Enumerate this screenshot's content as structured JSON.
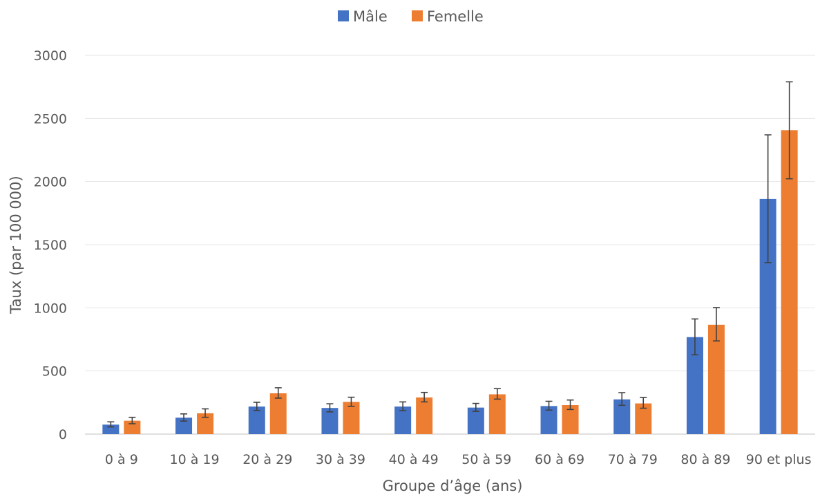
{
  "chart_data": {
    "type": "bar",
    "title": "",
    "xlabel": "Groupe d’âge (ans)",
    "ylabel": "Taux (par 100 000)",
    "ylim": [
      0,
      3000
    ],
    "yticks": [
      "0",
      "500",
      "1000",
      "1500",
      "2000",
      "2500",
      "3000"
    ],
    "ytick_values": [
      0,
      500,
      1000,
      1500,
      2000,
      2500,
      3000
    ],
    "grid": true,
    "legend_position": "top-center",
    "categories": [
      "0 à 9",
      "10 à 19",
      "20 à 29",
      "30 à 39",
      "40 à 49",
      "50 à 59",
      "60 à 69",
      "70 à 79",
      "80 à 89",
      "90 et plus"
    ],
    "series": [
      {
        "name": "Mâle",
        "color": "#4472c4",
        "values": [
          75,
          130,
          218,
          207,
          218,
          210,
          222,
          275,
          768,
          1862
        ],
        "error_low": [
          57,
          103,
          187,
          176,
          185,
          180,
          190,
          228,
          628,
          1358
        ],
        "error_high": [
          97,
          160,
          252,
          240,
          255,
          243,
          260,
          328,
          912,
          2370
        ]
      },
      {
        "name": "Femelle",
        "color": "#ed7d31",
        "values": [
          106,
          165,
          323,
          255,
          290,
          315,
          230,
          243,
          866,
          2407
        ],
        "error_low": [
          82,
          133,
          285,
          220,
          255,
          277,
          195,
          205,
          738,
          2022
        ],
        "error_high": [
          133,
          200,
          367,
          292,
          330,
          360,
          270,
          290,
          1002,
          2790
        ]
      }
    ]
  }
}
